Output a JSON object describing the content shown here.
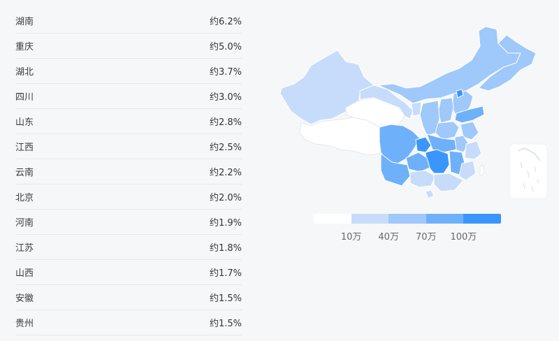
{
  "regions": [
    {
      "name": "湖南",
      "value": "约6.2%"
    },
    {
      "name": "重庆",
      "value": "约5.0%"
    },
    {
      "name": "湖北",
      "value": "约3.7%"
    },
    {
      "name": "四川",
      "value": "约3.0%"
    },
    {
      "name": "山东",
      "value": "约2.8%"
    },
    {
      "name": "江西",
      "value": "约2.5%"
    },
    {
      "name": "云南",
      "value": "约2.2%"
    },
    {
      "name": "北京",
      "value": "约2.0%"
    },
    {
      "name": "河南",
      "value": "约1.9%"
    },
    {
      "name": "江苏",
      "value": "约1.8%"
    },
    {
      "name": "山西",
      "value": "约1.7%"
    },
    {
      "name": "安徽",
      "value": "约1.5%"
    },
    {
      "name": "贵州",
      "value": "约1.5%"
    }
  ],
  "legend": {
    "colors": [
      "#ffffff",
      "#c6dcfa",
      "#9fc8fb",
      "#6fb0fb",
      "#3b96fb"
    ],
    "labels": [
      "10万",
      "40万",
      "70万",
      "100万"
    ]
  },
  "map_colors": {
    "white": "#ffffff",
    "light": "#c6dcfa",
    "mid": "#9fc8fb",
    "strong": "#6fb0fb",
    "top": "#3b96fb",
    "border": "#e2e8f0"
  }
}
